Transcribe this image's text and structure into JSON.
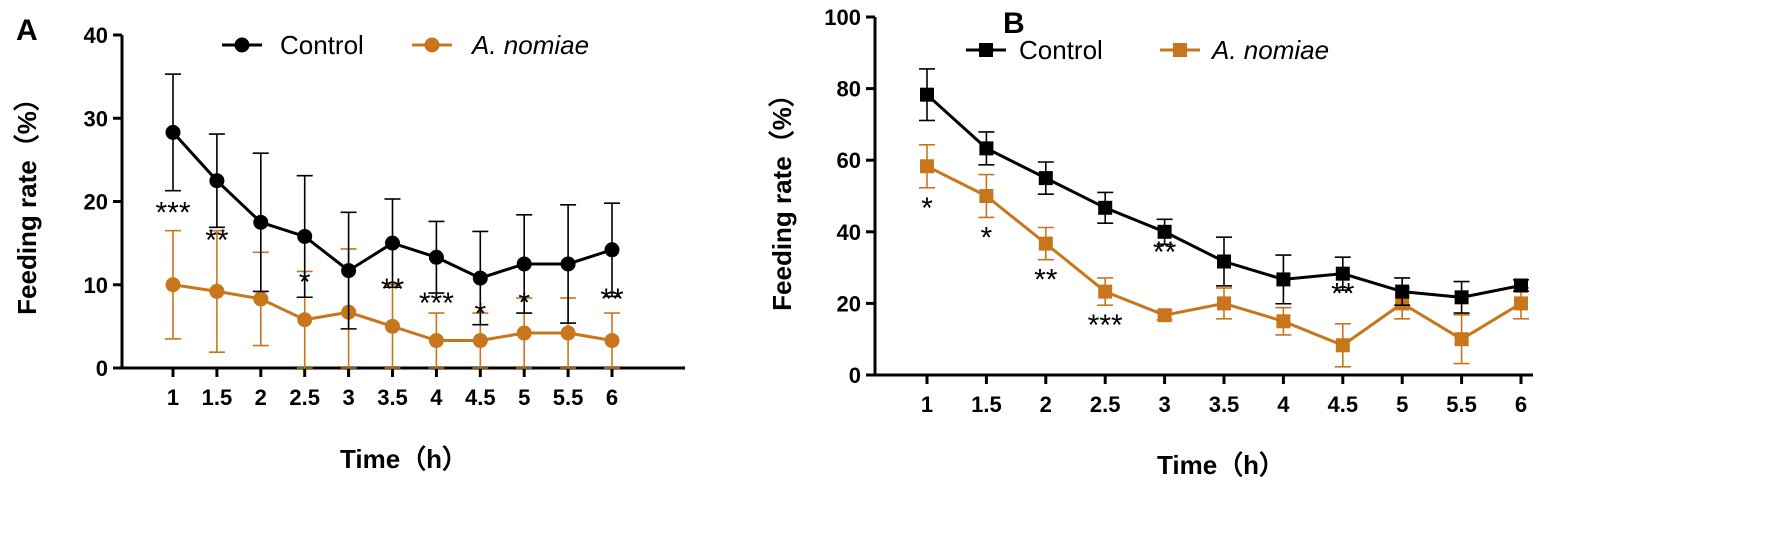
{
  "colors": {
    "control": "#000000",
    "treatment": "#c8761c"
  },
  "chart_data": [
    {
      "panel": "A",
      "type": "line",
      "marker": "circle",
      "xlabel": "Time（h）",
      "ylabel": "Feeding rate（%）",
      "categories": [
        "1",
        "1.5",
        "2",
        "2.5",
        "3",
        "3.5",
        "4",
        "4.5",
        "5",
        "5.5",
        "6"
      ],
      "ylim": [
        0,
        40
      ],
      "yticks": [
        "0",
        "10",
        "20",
        "30",
        "40"
      ],
      "legend": {
        "position": "top",
        "entries": [
          "Control",
          "A. nomiae"
        ]
      },
      "series": [
        {
          "name": "Control",
          "values": [
            28.3,
            22.5,
            17.5,
            15.8,
            11.7,
            15.0,
            13.3,
            10.8,
            12.5,
            12.5,
            14.2
          ],
          "errors": [
            7.0,
            5.6,
            8.3,
            7.3,
            7.0,
            5.3,
            4.3,
            5.6,
            5.9,
            7.1,
            5.6
          ]
        },
        {
          "name": "A. nomiae",
          "values": [
            10.0,
            9.2,
            8.3,
            5.8,
            6.7,
            5.0,
            3.3,
            3.3,
            4.2,
            4.2,
            3.3
          ],
          "errors": [
            6.5,
            7.3,
            5.6,
            5.8,
            7.6,
            5.0,
            3.3,
            3.3,
            4.2,
            4.2,
            3.3
          ]
        }
      ],
      "significance": [
        "***",
        "**",
        "",
        "*",
        "",
        "**",
        "***",
        "*",
        "*",
        "",
        "**"
      ]
    },
    {
      "panel": "B",
      "type": "line",
      "marker": "square",
      "xlabel": "Time（h）",
      "ylabel": "Feeding rate（%）",
      "categories": [
        "1",
        "1.5",
        "2",
        "2.5",
        "3",
        "3.5",
        "4",
        "4.5",
        "5",
        "5.5",
        "6"
      ],
      "ylim": [
        0,
        100
      ],
      "yticks": [
        "0",
        "20",
        "40",
        "60",
        "80",
        "100"
      ],
      "legend": {
        "position": "top",
        "entries": [
          "Control",
          "A. nomiae"
        ]
      },
      "series": [
        {
          "name": "Control",
          "values": [
            78.3,
            63.3,
            55.0,
            46.7,
            40.0,
            31.7,
            26.7,
            28.3,
            23.3,
            21.7,
            25.0
          ],
          "errors": [
            7.2,
            4.6,
            4.5,
            4.3,
            3.5,
            6.8,
            6.8,
            4.6,
            3.8,
            4.4,
            1.6
          ]
        },
        {
          "name": "A. nomiae",
          "values": [
            58.3,
            50.0,
            36.7,
            23.3,
            16.7,
            20.0,
            15.0,
            8.3,
            20.0,
            10.0,
            20.0
          ],
          "errors": [
            6.0,
            6.0,
            4.5,
            3.8,
            1.3,
            4.3,
            3.8,
            6.0,
            4.3,
            6.8,
            4.3
          ]
        }
      ],
      "significance": [
        "*",
        "*",
        "**",
        "***",
        "**",
        "",
        "",
        "**",
        "",
        "",
        ""
      ]
    }
  ]
}
